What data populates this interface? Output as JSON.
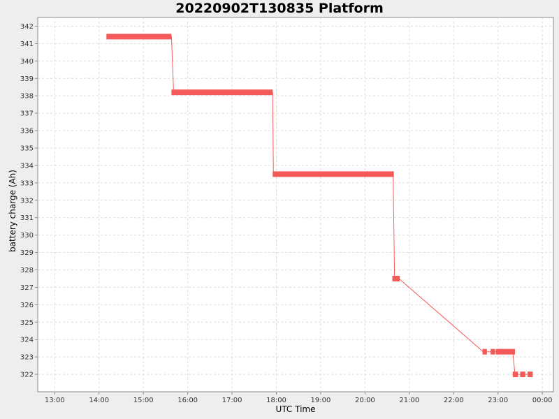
{
  "chart_data": {
    "type": "line",
    "title": "20220902T130835 Platform",
    "xlabel": "UTC Time",
    "ylabel": "battery charge (Ah)",
    "xlim": [
      "12:37",
      "00:15"
    ],
    "ylim": [
      321.0,
      342.5
    ],
    "x_ticks": [
      "13:00",
      "14:00",
      "15:00",
      "16:00",
      "17:00",
      "18:00",
      "19:00",
      "20:00",
      "21:00",
      "22:00",
      "23:00",
      "00:00"
    ],
    "y_ticks": [
      322,
      323,
      324,
      325,
      326,
      327,
      328,
      329,
      330,
      331,
      332,
      333,
      334,
      335,
      336,
      337,
      338,
      339,
      340,
      341,
      342
    ],
    "grid": true,
    "series": [
      {
        "color": "#f55a5a",
        "points": [
          {
            "x": "14:10",
            "y": 341.4
          },
          {
            "x": "15:38",
            "y": 341.4
          },
          {
            "x": "15:41",
            "y": 338.2
          },
          {
            "x": "17:55",
            "y": 338.2
          },
          {
            "x": "17:56",
            "y": 333.5
          },
          {
            "x": "20:38",
            "y": 333.5
          },
          {
            "x": "20:40",
            "y": 327.5
          },
          {
            "x": "20:46",
            "y": 327.5
          },
          {
            "x": "22:40",
            "y": 323.3
          },
          {
            "x": "22:45",
            "y": 323.3
          },
          {
            "x": "22:51",
            "y": 323.3
          },
          {
            "x": "23:00",
            "y": 323.3
          },
          {
            "x": "23:10",
            "y": 323.3
          },
          {
            "x": "23:20",
            "y": 323.3
          },
          {
            "x": "23:23",
            "y": 322.0
          },
          {
            "x": "23:33",
            "y": 322.0
          },
          {
            "x": "23:45",
            "y": 322.0
          }
        ],
        "segments": [
          {
            "x0": "14:10",
            "x1": "15:38",
            "y": 341.4
          },
          {
            "x0": "15:38",
            "x1": "17:55",
            "y": 338.2
          },
          {
            "x0": "17:55",
            "x1": "20:39",
            "y": 333.5
          },
          {
            "x0": "20:37",
            "x1": "20:47",
            "y": 327.5
          },
          {
            "x0": "22:39",
            "x1": "22:45",
            "y": 323.3
          },
          {
            "x0": "22:50",
            "x1": "22:56",
            "y": 323.3
          },
          {
            "x0": "22:57",
            "x1": "23:23",
            "y": 323.3
          },
          {
            "x0": "23:20",
            "x1": "23:27",
            "y": 322.0
          },
          {
            "x0": "23:30",
            "x1": "23:37",
            "y": 322.0
          },
          {
            "x0": "23:40",
            "x1": "23:47",
            "y": 322.0
          }
        ]
      }
    ]
  }
}
